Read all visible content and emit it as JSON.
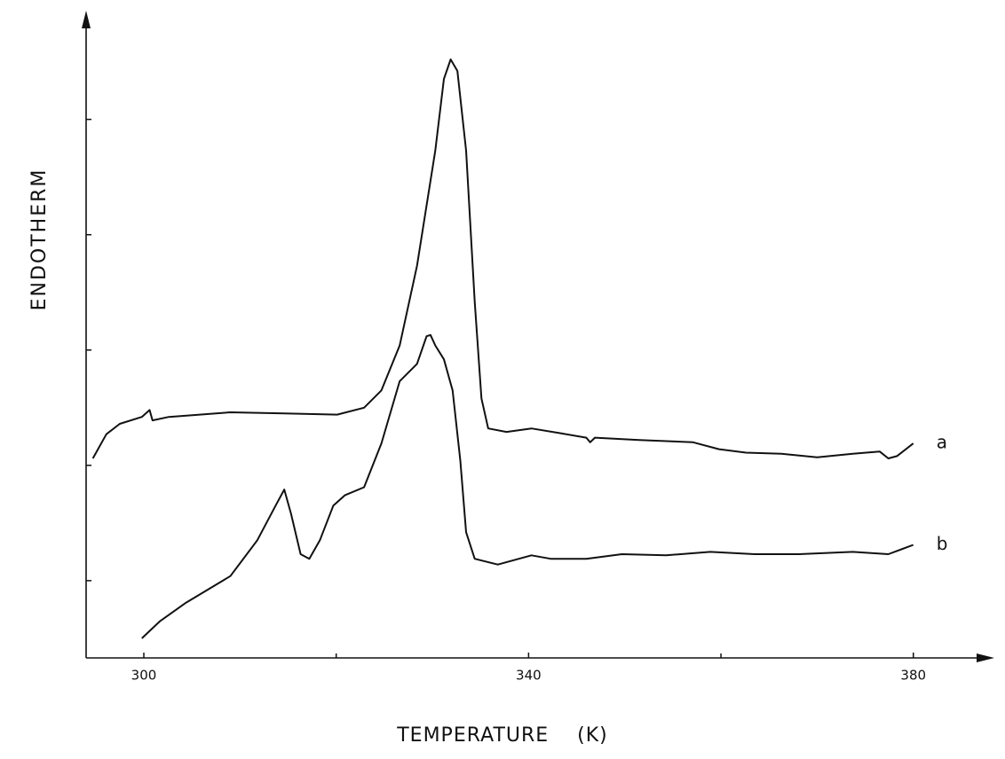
{
  "chart_data": {
    "type": "line",
    "xlabel": "TEMPERATURE    (K)",
    "ylabel": "ENDOTHERM",
    "xlim": [
      294,
      387.5
    ],
    "xticks": [
      300,
      340,
      380
    ],
    "x_minor_ticks": [
      320,
      360
    ],
    "ylim": [
      -0.67,
      4.92
    ],
    "yticks": [
      0,
      1,
      2,
      3,
      4
    ],
    "grid": false,
    "series": [
      {
        "name": "a",
        "color": "#111111",
        "x": [
          294.7,
          296.1,
          297.5,
          299.8,
          300.6,
          300.9,
          302.6,
          309.0,
          314.6,
          320.1,
          322.9,
          324.7,
          326.6,
          328.4,
          330.3,
          331.2,
          331.9,
          332.6,
          333.5,
          334.4,
          335.1,
          335.8,
          337.7,
          340.3,
          343.2,
          346.0,
          346.4,
          346.9,
          351.5,
          357.1,
          359.8,
          362.6,
          366.3,
          370.0,
          373.7,
          376.5,
          377.4,
          378.3,
          380.0
        ],
        "values": [
          1.06,
          1.27,
          1.36,
          1.42,
          1.48,
          1.39,
          1.42,
          1.46,
          1.45,
          1.44,
          1.5,
          1.65,
          2.04,
          2.73,
          3.73,
          4.35,
          4.52,
          4.42,
          3.73,
          2.42,
          1.58,
          1.32,
          1.29,
          1.32,
          1.28,
          1.24,
          1.2,
          1.24,
          1.22,
          1.2,
          1.14,
          1.11,
          1.1,
          1.07,
          1.1,
          1.12,
          1.06,
          1.08,
          1.19
        ]
      },
      {
        "name": "b",
        "color": "#111111",
        "x": [
          299.8,
          301.7,
          304.4,
          309.0,
          311.8,
          313.7,
          314.6,
          315.3,
          316.3,
          317.2,
          318.3,
          319.7,
          320.9,
          322.9,
          324.7,
          326.6,
          328.4,
          329.4,
          329.8,
          330.3,
          331.2,
          332.1,
          332.9,
          333.5,
          334.4,
          336.8,
          340.3,
          342.3,
          346.0,
          349.7,
          354.3,
          358.9,
          363.5,
          368.1,
          373.7,
          377.4,
          380.0
        ],
        "values": [
          -0.5,
          -0.35,
          -0.19,
          0.04,
          0.35,
          0.65,
          0.79,
          0.58,
          0.23,
          0.19,
          0.35,
          0.65,
          0.74,
          0.81,
          1.19,
          1.73,
          1.88,
          2.12,
          2.13,
          2.04,
          1.92,
          1.65,
          1.04,
          0.42,
          0.19,
          0.14,
          0.22,
          0.19,
          0.19,
          0.23,
          0.22,
          0.25,
          0.23,
          0.23,
          0.25,
          0.23,
          0.31
        ]
      }
    ]
  }
}
